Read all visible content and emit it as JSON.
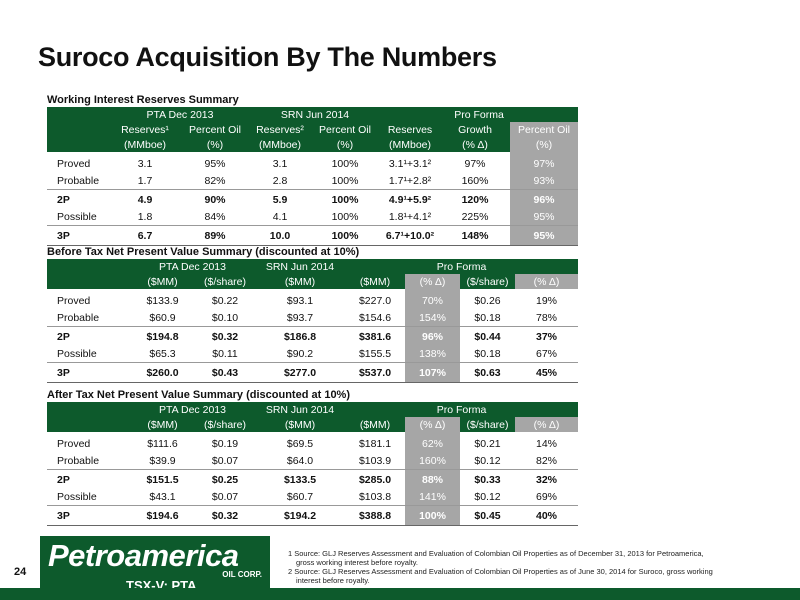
{
  "title": "Suroco Acquisition By The Numbers",
  "tables": [
    {
      "caption": "Working Interest Reserves Summary",
      "groups": [
        "PTA Dec 2013",
        "SRN Jun 2014",
        "Pro Forma"
      ],
      "columns": [
        [
          "Reserves¹",
          "(MMboe)"
        ],
        [
          "Percent Oil",
          "(%)"
        ],
        [
          "Reserves²",
          "(MMboe)"
        ],
        [
          "Percent Oil",
          "(%)"
        ],
        [
          "Reserves",
          "(MMboe)"
        ],
        [
          "Growth",
          "(% Δ)"
        ],
        [
          "Percent Oil",
          "(%)"
        ]
      ],
      "rows": [
        [
          "Proved",
          "3.1",
          "95%",
          "3.1",
          "100%",
          "3.1¹+3.1²",
          "97%",
          "97%"
        ],
        [
          "Probable",
          "1.7",
          "82%",
          "2.8",
          "100%",
          "1.7¹+2.8²",
          "160%",
          "93%"
        ],
        [
          "2P",
          "4.9",
          "90%",
          "5.9",
          "100%",
          "4.9¹+5.9²",
          "120%",
          "96%"
        ],
        [
          "Possible",
          "1.8",
          "84%",
          "4.1",
          "100%",
          "1.8¹+4.1²",
          "225%",
          "95%"
        ],
        [
          "3P",
          "6.7",
          "89%",
          "10.0",
          "100%",
          "6.7¹+10.0²",
          "148%",
          "95%"
        ]
      ]
    },
    {
      "caption": "Before Tax Net Present Value Summary (discounted at 10%)",
      "groups": [
        "PTA Dec 2013",
        "SRN Jun 2014",
        "Pro Forma"
      ],
      "columns": [
        [
          "($MM)"
        ],
        [
          "($/share)"
        ],
        [
          "($MM)"
        ],
        [
          "($MM)"
        ],
        [
          "(% Δ)"
        ],
        [
          "($/share)"
        ],
        [
          "(% Δ)"
        ]
      ],
      "rows": [
        [
          "Proved",
          "$133.9",
          "$0.22",
          "$93.1",
          "$227.0",
          "70%",
          "$0.26",
          "19%"
        ],
        [
          "Probable",
          "$60.9",
          "$0.10",
          "$93.7",
          "$154.6",
          "154%",
          "$0.18",
          "78%"
        ],
        [
          "2P",
          "$194.8",
          "$0.32",
          "$186.8",
          "$381.6",
          "96%",
          "$0.44",
          "37%"
        ],
        [
          "Possible",
          "$65.3",
          "$0.11",
          "$90.2",
          "$155.5",
          "138%",
          "$0.18",
          "67%"
        ],
        [
          "3P",
          "$260.0",
          "$0.43",
          "$277.0",
          "$537.0",
          "107%",
          "$0.63",
          "45%"
        ]
      ]
    },
    {
      "caption": "After Tax Net Present Value Summary (discounted at 10%)",
      "groups": [
        "PTA Dec 2013",
        "SRN Jun 2014",
        "Pro Forma"
      ],
      "columns": [
        [
          "($MM)"
        ],
        [
          "($/share)"
        ],
        [
          "($MM)"
        ],
        [
          "($MM)"
        ],
        [
          "(% Δ)"
        ],
        [
          "($/share)"
        ],
        [
          "(% Δ)"
        ]
      ],
      "rows": [
        [
          "Proved",
          "$111.6",
          "$0.19",
          "$69.5",
          "$181.1",
          "62%",
          "$0.21",
          "14%"
        ],
        [
          "Probable",
          "$39.9",
          "$0.07",
          "$64.0",
          "$103.9",
          "160%",
          "$0.12",
          "82%"
        ],
        [
          "2P",
          "$151.5",
          "$0.25",
          "$133.5",
          "$285.0",
          "88%",
          "$0.33",
          "32%"
        ],
        [
          "Possible",
          "$43.1",
          "$0.07",
          "$60.7",
          "$103.8",
          "141%",
          "$0.12",
          "69%"
        ],
        [
          "3P",
          "$194.6",
          "$0.32",
          "$194.2",
          "$388.8",
          "100%",
          "$0.45",
          "40%"
        ]
      ]
    }
  ],
  "footer": {
    "page": "24",
    "logo": "Petroamerica",
    "logo_sub": "OIL CORP.",
    "ticker": "TSX-V: PTA",
    "notes": [
      "1 Source: GLJ Reserves Assessment and Evaluation of Colombian Oil Properties as of December 31, 2013 for Petroamerica, gross working interest before royalty.",
      "2 Source: GLJ Reserves Assessment and Evaluation of Colombian Oil Properties as of June 30, 2014 for Suroco, gross working interest before royalty."
    ]
  }
}
